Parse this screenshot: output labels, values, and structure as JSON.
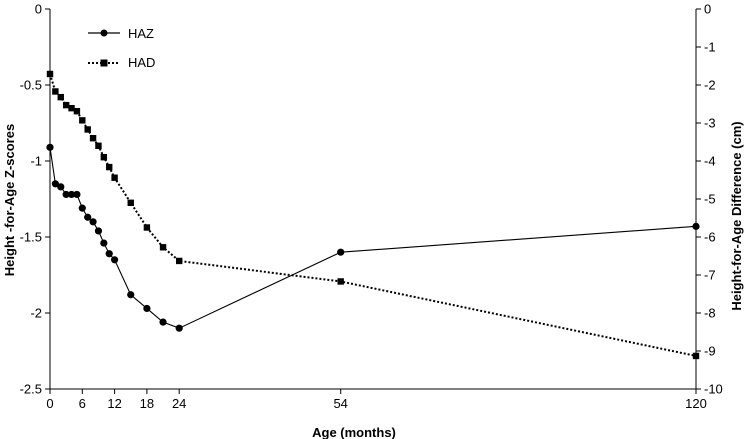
{
  "chart_data": {
    "type": "line",
    "title": "",
    "xlabel": "Age (months)",
    "ylabel_left": "Height -for-Age Z-scores",
    "ylabel_right": "Height-for-Age Difference (cm)",
    "x_ticks": [
      0,
      6,
      12,
      18,
      24,
      54,
      120
    ],
    "x_tick_labels": [
      "0",
      "6",
      "12",
      "18",
      "24",
      "54",
      "120"
    ],
    "xlim": [
      0,
      120
    ],
    "ylim_left": [
      -2.5,
      0
    ],
    "ylim_right": [
      -10,
      0
    ],
    "left_tick_labels": [
      "0",
      "-0.5",
      "-1",
      "-1.5",
      "-2",
      "-2.5"
    ],
    "right_tick_labels": [
      "0",
      "-1",
      "-2",
      "-3",
      "-4",
      "-5",
      "-6",
      "-7",
      "-8",
      "-9",
      "-10"
    ],
    "legend_position": "top-left",
    "grid": false,
    "series": [
      {
        "name": "HAZ",
        "axis": "left",
        "style": "solid",
        "marker": "circle",
        "x": [
          0,
          1,
          2,
          3,
          4,
          5,
          6,
          7,
          8,
          9,
          10,
          11,
          12,
          15,
          18,
          21,
          24,
          54,
          120
        ],
        "y": [
          -0.91,
          -1.15,
          -1.17,
          -1.22,
          -1.22,
          -1.22,
          -1.31,
          -1.37,
          -1.4,
          -1.46,
          -1.54,
          -1.61,
          -1.65,
          -1.88,
          -1.97,
          -2.06,
          -2.1,
          -1.6,
          -1.43
        ]
      },
      {
        "name": "HAD",
        "axis": "right",
        "style": "dotted",
        "marker": "square",
        "x": [
          0,
          1,
          2,
          3,
          4,
          5,
          6,
          7,
          8,
          9,
          10,
          11,
          12,
          15,
          18,
          21,
          24,
          54,
          120
        ],
        "y": [
          -1.71,
          -2.17,
          -2.32,
          -2.53,
          -2.61,
          -2.69,
          -2.93,
          -3.17,
          -3.4,
          -3.6,
          -3.9,
          -4.16,
          -4.44,
          -5.1,
          -5.75,
          -6.27,
          -6.63,
          -7.17,
          -9.13
        ]
      }
    ]
  }
}
